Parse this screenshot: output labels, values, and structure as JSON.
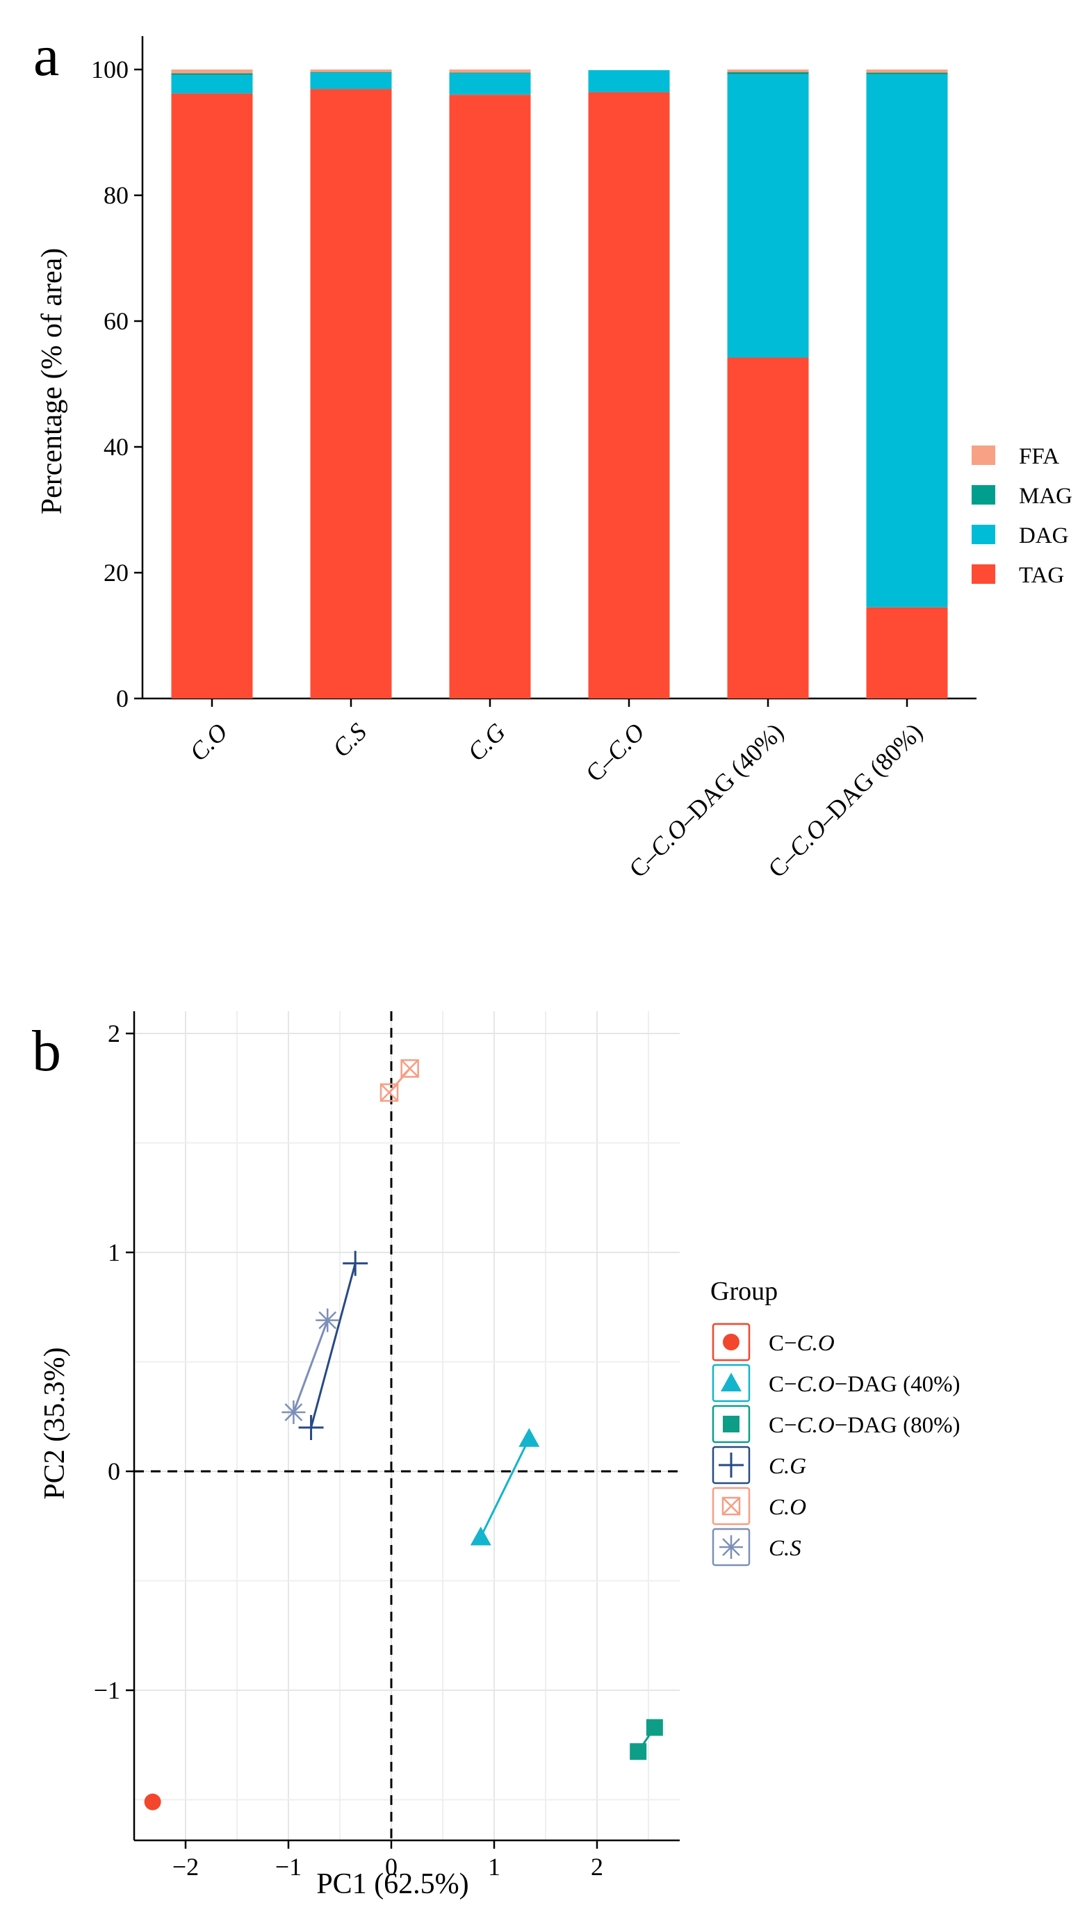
{
  "panels": {
    "a": {
      "letter": "a"
    },
    "b": {
      "letter": "b"
    }
  },
  "chart_data": [
    {
      "type": "bar",
      "stacked": true,
      "title": "",
      "xlabel": "",
      "ylabel": "Percentage (% of area)",
      "ylim": [
        0,
        105
      ],
      "yticks": [
        0,
        20,
        40,
        60,
        80,
        100
      ],
      "categories": [
        "C.O",
        "C.S",
        "C.G",
        "C-C.O",
        "C-C.O-DAG (40%)",
        "C-C.O-DAG (80%)"
      ],
      "category_parts": [
        [
          {
            "t": "C.O",
            "i": true
          }
        ],
        [
          {
            "t": "C.S",
            "i": true
          }
        ],
        [
          {
            "t": "C.G",
            "i": true
          }
        ],
        [
          {
            "t": "C–",
            "i": false
          },
          {
            "t": "C.O",
            "i": true
          }
        ],
        [
          {
            "t": "C–",
            "i": false
          },
          {
            "t": "C.O",
            "i": true
          },
          {
            "t": "–DAG (40%)",
            "i": false
          }
        ],
        [
          {
            "t": "C–",
            "i": false
          },
          {
            "t": "C.O",
            "i": true
          },
          {
            "t": "–DAG (80%)",
            "i": false
          }
        ]
      ],
      "series": [
        {
          "name": "TAG",
          "color": "#FF4B33",
          "values": [
            96.2,
            96.9,
            96.0,
            96.4,
            54.2,
            14.5
          ]
        },
        {
          "name": "DAG",
          "color": "#00BCD6",
          "values": [
            2.9,
            2.6,
            3.4,
            3.5,
            45.0,
            84.7
          ]
        },
        {
          "name": "MAG",
          "color": "#009E8C",
          "values": [
            0.3,
            0.1,
            0.1,
            0.0,
            0.4,
            0.3
          ]
        },
        {
          "name": "FFA",
          "color": "#F9A184",
          "values": [
            0.6,
            0.4,
            0.5,
            0.0,
            0.4,
            0.5
          ]
        }
      ],
      "legend_order": [
        "FFA",
        "MAG",
        "DAG",
        "TAG"
      ],
      "legend_position": "right",
      "grid": false
    },
    {
      "type": "scatter",
      "title": "",
      "xlabel": "PC1 (62.5%)",
      "ylabel": "PC2 (35.3%)",
      "xlim": [
        -2.55,
        2.8
      ],
      "ylim": [
        -1.66,
        2.05
      ],
      "xticks": [
        -2,
        -1,
        0,
        1,
        2
      ],
      "yticks": [
        -1,
        0,
        1,
        2
      ],
      "xtick_labels": [
        "−2",
        "−1",
        "0",
        "1",
        "2"
      ],
      "ytick_labels": [
        "−1",
        "0",
        "1",
        "2"
      ],
      "grid": true,
      "reference_lines": {
        "x": 0,
        "y": 0,
        "style": "dashed"
      },
      "legend_title": "Group",
      "legend_position": "right",
      "series": [
        {
          "name": "C-C.O",
          "name_parts": [
            {
              "t": "C−",
              "i": false
            },
            {
              "t": "C.O",
              "i": true
            }
          ],
          "color": "#F2462D",
          "marker": "circle",
          "points": [
            [
              -2.32,
              -1.51
            ]
          ]
        },
        {
          "name": "C-C.O-DAG (40%)",
          "name_parts": [
            {
              "t": "C−",
              "i": false
            },
            {
              "t": "C.O",
              "i": true
            },
            {
              "t": "−DAG (40%)",
              "i": false
            }
          ],
          "color": "#14B4CC",
          "marker": "triangle",
          "points": [
            [
              0.87,
              -0.3
            ],
            [
              1.34,
              0.15
            ]
          ]
        },
        {
          "name": "C-C.O-DAG (80%)",
          "name_parts": [
            {
              "t": "C−",
              "i": false
            },
            {
              "t": "C.O",
              "i": true
            },
            {
              "t": "−DAG (80%)",
              "i": false
            }
          ],
          "color": "#0E9E88",
          "marker": "square",
          "points": [
            [
              2.4,
              -1.28
            ],
            [
              2.56,
              -1.17
            ]
          ]
        },
        {
          "name": "C.G",
          "name_parts": [
            {
              "t": "C.G",
              "i": true
            }
          ],
          "color": "#284A84",
          "marker": "plus",
          "points": [
            [
              -0.78,
              0.2
            ],
            [
              -0.35,
              0.95
            ]
          ]
        },
        {
          "name": "C.O",
          "name_parts": [
            {
              "t": "C.O",
              "i": true
            }
          ],
          "color": "#F69E84",
          "marker": "square-x",
          "points": [
            [
              -0.02,
              1.73
            ],
            [
              0.18,
              1.84
            ]
          ]
        },
        {
          "name": "C.S",
          "name_parts": [
            {
              "t": "C.S",
              "i": true
            }
          ],
          "color": "#7C8FB8",
          "marker": "asterisk",
          "points": [
            [
              -0.95,
              0.27
            ],
            [
              -0.62,
              0.69
            ]
          ]
        }
      ]
    }
  ]
}
